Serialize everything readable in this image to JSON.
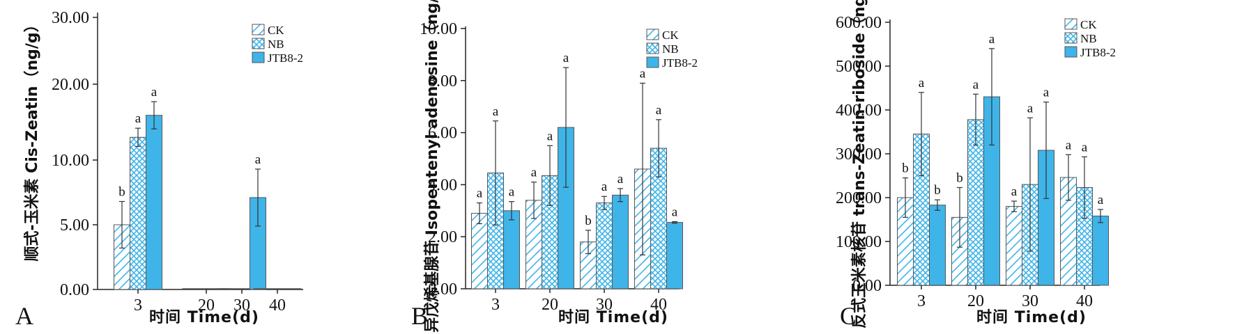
{
  "colors": {
    "bar": "#3fb4e8",
    "hatch": "#3fb4e8",
    "axis": "#222222",
    "error": "#333333"
  },
  "legend": [
    "CK",
    "NB",
    "JTB8-2"
  ],
  "chart_data": [
    {
      "type": "bar",
      "panel": "A",
      "ylabel": "顺式-玉米素 Cis-Zeatin（ng/g）",
      "xlabel": "时间 Time(d)",
      "ylim": [
        0,
        30
      ],
      "yticks": [
        "0.00",
        "5.00",
        "10.00",
        "20.00",
        "30.00"
      ],
      "categories": [
        "3",
        "20",
        "30",
        "40"
      ],
      "series": [
        {
          "name": "CK",
          "values": [
            5.0,
            0.0,
            0.0,
            0.0
          ],
          "errors": [
            1.8,
            0,
            0,
            0
          ],
          "sig": [
            "b",
            "",
            "",
            ""
          ]
        },
        {
          "name": "NB",
          "values": [
            13.0,
            0.0,
            0.0,
            0.0
          ],
          "errors": [
            1.2,
            0,
            0,
            0
          ],
          "sig": [
            "a",
            "",
            "",
            ""
          ]
        },
        {
          "name": "JTB8-2",
          "values": [
            15.9,
            0.0,
            7.1,
            0.0
          ],
          "errors": [
            1.8,
            0,
            2.2,
            0
          ],
          "sig": [
            "a",
            "",
            "a",
            ""
          ]
        }
      ]
    },
    {
      "type": "bar",
      "panel": "B",
      "ylabel": "异戊烯基腺苷 Isopentenyl adenosine（ng/g）",
      "xlabel": "时间 Time(d)",
      "ylim": [
        0,
        10
      ],
      "yticks": [
        "0.00",
        "2.00",
        "4.00",
        "6.00",
        "8.00",
        "10.00"
      ],
      "categories": [
        "3",
        "20",
        "30",
        "40"
      ],
      "series": [
        {
          "name": "CK",
          "values": [
            2.9,
            3.4,
            1.8,
            4.6
          ],
          "errors": [
            0.4,
            0.7,
            0.45,
            3.3
          ],
          "sig": [
            "a",
            "a",
            "b",
            "a"
          ]
        },
        {
          "name": "NB",
          "values": [
            4.45,
            4.35,
            3.3,
            5.4
          ],
          "errors": [
            2.0,
            1.15,
            0.25,
            1.1
          ],
          "sig": [
            "a",
            "a",
            "a",
            "a"
          ]
        },
        {
          "name": "JTB8-2",
          "values": [
            3.0,
            6.2,
            3.6,
            2.55
          ],
          "errors": [
            0.35,
            2.3,
            0.25,
            0.03
          ],
          "sig": [
            "a",
            "a",
            "a",
            "a"
          ]
        }
      ]
    },
    {
      "type": "bar",
      "panel": "C",
      "ylabel": "反式玉米素核苷 trans-Zeatin-riboside（ng/g）",
      "xlabel": "时间 Time(d)",
      "ylim": [
        0,
        600
      ],
      "yticks": [
        "0.00",
        "100.00",
        "200.00",
        "300.00",
        "400.00",
        "500.00",
        "600.00"
      ],
      "categories": [
        "3",
        "20",
        "30",
        "40"
      ],
      "series": [
        {
          "name": "CK",
          "values": [
            200,
            155,
            180,
            246
          ],
          "errors": [
            45,
            68,
            12,
            52
          ],
          "sig": [
            "b",
            "b",
            "a",
            "a"
          ]
        },
        {
          "name": "NB",
          "values": [
            345,
            378,
            230,
            223
          ],
          "errors": [
            95,
            58,
            152,
            70
          ],
          "sig": [
            "a",
            "a",
            "a",
            "a"
          ]
        },
        {
          "name": "JTB8-2",
          "values": [
            183,
            430,
            308,
            158
          ],
          "errors": [
            12,
            110,
            110,
            15
          ],
          "sig": [
            "b",
            "a",
            "a",
            "a"
          ]
        }
      ]
    }
  ]
}
